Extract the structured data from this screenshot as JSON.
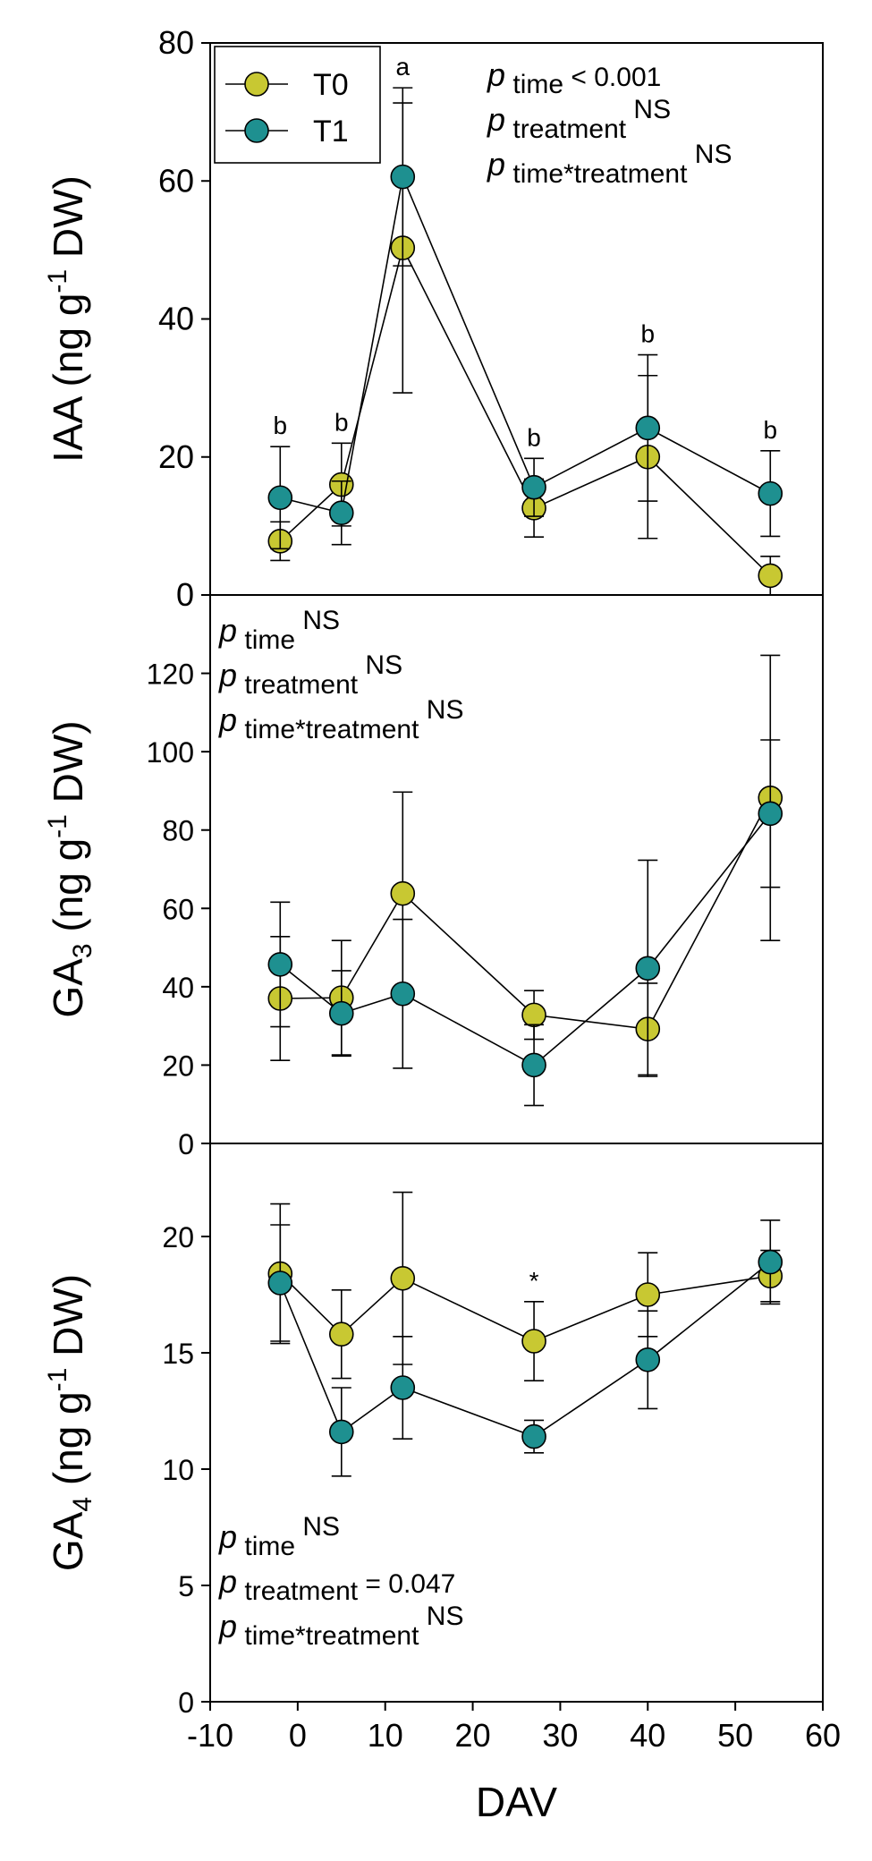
{
  "colors": {
    "T0": "#c8c832",
    "T1": "#1e9090",
    "axis": "#000000",
    "background": "#ffffff"
  },
  "legend": {
    "items": [
      {
        "label": "T0",
        "series": "T0"
      },
      {
        "label": "T1",
        "series": "T1"
      }
    ]
  },
  "chart_data": {
    "type": "line",
    "xlabel": "DAV",
    "xlim": [
      -10,
      60
    ],
    "xticks": [
      -10,
      0,
      10,
      20,
      30,
      40,
      50,
      60
    ],
    "x": [
      -2,
      5,
      12,
      27,
      40,
      54
    ],
    "panels": [
      {
        "id": "iaa",
        "ylabel": {
          "main": "IAA (ng g",
          "sup": "-1",
          "tail": " DW)"
        },
        "ylim": [
          0,
          80
        ],
        "yticks": [
          0,
          20,
          40,
          60,
          80
        ],
        "series": [
          {
            "name": "T0",
            "values": [
              7.8,
              16.0,
              50.3,
              12.6,
              20.0,
              2.8
            ],
            "err": [
              2.8,
              6.0,
              21.0,
              4.2,
              11.8,
              2.8
            ]
          },
          {
            "name": "T1",
            "values": [
              14.1,
              11.9,
              60.6,
              15.6,
              24.2,
              14.7
            ],
            "err": [
              7.4,
              4.6,
              12.9,
              4.2,
              10.6,
              6.2
            ]
          }
        ],
        "letters": [
          {
            "x": -2,
            "text": "b"
          },
          {
            "x": 5,
            "text": "b"
          },
          {
            "x": 12,
            "text": "a"
          },
          {
            "x": 27,
            "text": "b"
          },
          {
            "x": 40,
            "text": "b"
          },
          {
            "x": 54,
            "text": "b"
          }
        ],
        "stats": [
          {
            "p": "p",
            "sub": "time",
            "sup": "",
            "suffix": " < 0.001"
          },
          {
            "p": "p",
            "sub": "treatment",
            "sup": "NS",
            "suffix": ""
          },
          {
            "p": "p",
            "sub": "time*treatment",
            "sup": "NS",
            "suffix": ""
          }
        ]
      },
      {
        "id": "ga3",
        "ylabel": {
          "main": "GA",
          "sub": "3",
          "tail": " (ng g",
          "sup": "-1",
          "tail2": " DW)"
        },
        "ylim": [
          0,
          140
        ],
        "yticks": [
          0,
          20,
          40,
          60,
          80,
          100,
          120
        ],
        "series": [
          {
            "name": "T0",
            "values": [
              37.0,
              37.2,
              63.8,
              32.8,
              29.2,
              88.2
            ],
            "err": [
              15.8,
              14.6,
              25.9,
              6.2,
              11.7,
              36.4
            ]
          },
          {
            "name": "T1",
            "values": [
              45.7,
              33.2,
              38.2,
              20.0,
              44.7,
              84.2
            ],
            "err": [
              15.9,
              10.9,
              19.0,
              10.3,
              27.6,
              18.8
            ]
          }
        ],
        "stats": [
          {
            "p": "p",
            "sub": "time",
            "sup": "NS",
            "suffix": ""
          },
          {
            "p": "p",
            "sub": "treatment",
            "sup": "NS",
            "suffix": ""
          },
          {
            "p": "p",
            "sub": "time*treatment",
            "sup": "NS",
            "suffix": ""
          }
        ]
      },
      {
        "id": "ga4",
        "ylabel": {
          "main": "GA",
          "sub": "4",
          "tail": " (ng g",
          "sup": "-1",
          "tail2": " DW)"
        },
        "ylim": [
          0,
          24
        ],
        "yticks": [
          0,
          5,
          10,
          15,
          20
        ],
        "series": [
          {
            "name": "T0",
            "values": [
              18.4,
              15.8,
              18.2,
              15.5,
              17.5,
              18.3
            ],
            "err": [
              3.0,
              1.9,
              3.7,
              1.7,
              1.8,
              1.1
            ]
          },
          {
            "name": "T1",
            "values": [
              18.0,
              11.6,
              13.5,
              11.4,
              14.7,
              18.9
            ],
            "err": [
              2.5,
              1.9,
              2.2,
              0.7,
              2.1,
              1.8
            ]
          }
        ],
        "marks": [
          {
            "x": 27,
            "text": "*"
          }
        ],
        "stats": [
          {
            "p": "p",
            "sub": "time",
            "sup": "NS",
            "suffix": ""
          },
          {
            "p": "p",
            "sub": "treatment",
            "sup": "",
            "suffix": " = 0.047"
          },
          {
            "p": "p",
            "sub": "time*treatment",
            "sup": "NS",
            "suffix": ""
          }
        ]
      }
    ]
  }
}
